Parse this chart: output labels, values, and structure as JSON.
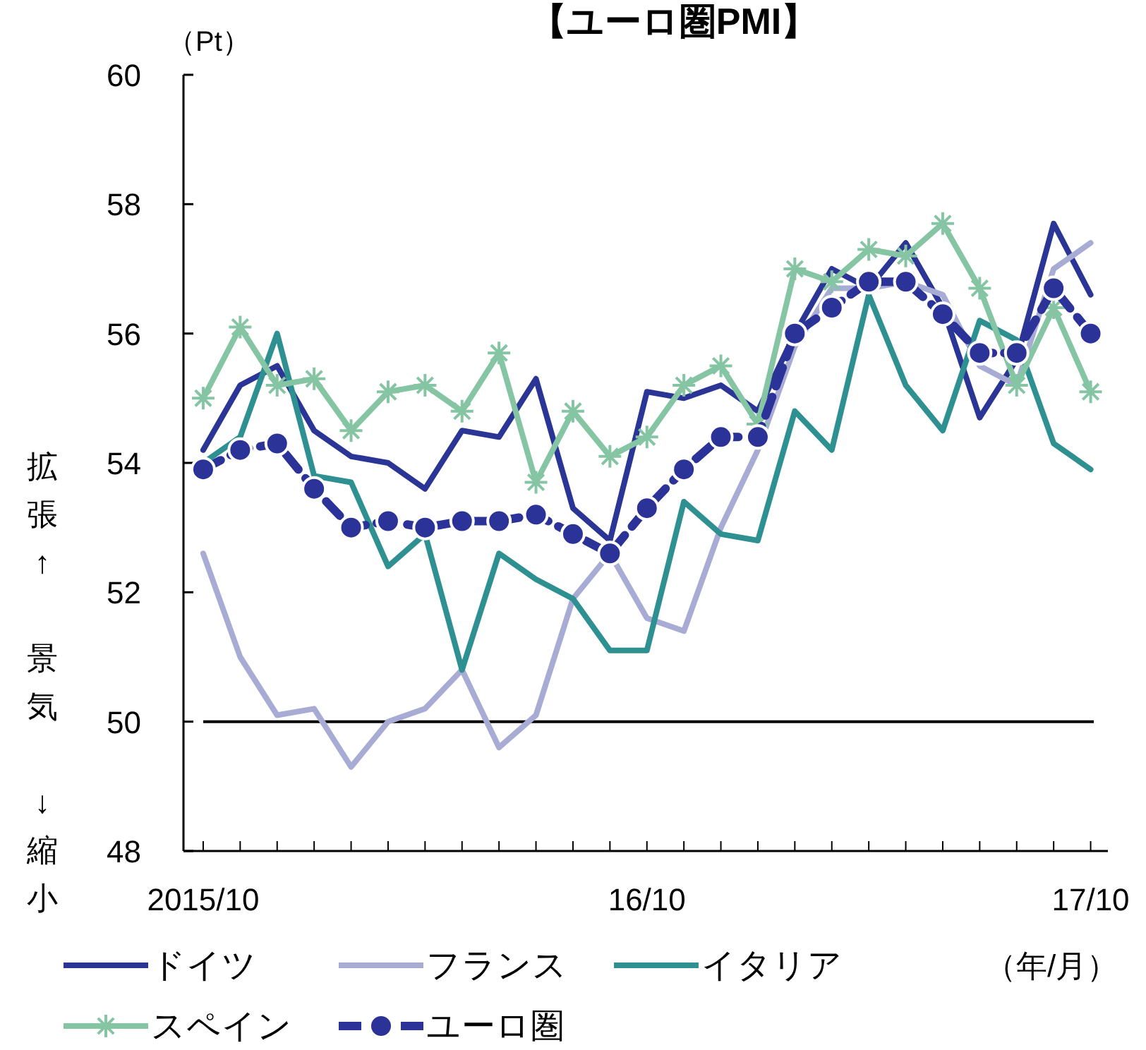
{
  "chart_data": {
    "type": "line",
    "title": "【ユーロ圏PMI】",
    "xlabel": "（年/月）",
    "ylabel": "拡張↑ 景気 ↓縮小",
    "annotations": [
      "（Pt）"
    ],
    "x": [
      "2015-10",
      "2015-11",
      "2015-12",
      "2016-01",
      "2016-02",
      "2016-03",
      "2016-04",
      "2016-05",
      "2016-06",
      "2016-07",
      "2016-08",
      "2016-09",
      "2016-10",
      "2016-11",
      "2016-12",
      "2017-01",
      "2017-02",
      "2017-03",
      "2017-04",
      "2017-05",
      "2017-06",
      "2017-07",
      "2017-08",
      "2017-09",
      "2017-10"
    ],
    "xlim": [
      "2015-09-15",
      "2017-10-15"
    ],
    "xticks": [
      {
        "value": "2015-10",
        "label": "2015/10"
      },
      {
        "value": "2015-11",
        "label": null
      },
      {
        "value": "2015-12",
        "label": null
      },
      {
        "value": "2016-01",
        "label": null
      },
      {
        "value": "2016-02",
        "label": null
      },
      {
        "value": "2016-03",
        "label": null
      },
      {
        "value": "2016-04",
        "label": null
      },
      {
        "value": "2016-05",
        "label": null
      },
      {
        "value": "2016-06",
        "label": null
      },
      {
        "value": "2016-07",
        "label": null
      },
      {
        "value": "2016-08",
        "label": null
      },
      {
        "value": "2016-09",
        "label": null
      },
      {
        "value": "2016-10",
        "label": "16/10"
      },
      {
        "value": "2016-11",
        "label": null
      },
      {
        "value": "2016-12",
        "label": null
      },
      {
        "value": "2017-01",
        "label": null
      },
      {
        "value": "2017-02",
        "label": null
      },
      {
        "value": "2017-03",
        "label": null
      },
      {
        "value": "2017-04",
        "label": null
      },
      {
        "value": "2017-05",
        "label": null
      },
      {
        "value": "2017-06",
        "label": null
      },
      {
        "value": "2017-07",
        "label": null
      },
      {
        "value": "2017-08",
        "label": null
      },
      {
        "value": "2017-09",
        "label": null
      },
      {
        "value": "2017-10",
        "label": "17/10"
      }
    ],
    "ylim": [
      48,
      60
    ],
    "yticks": [
      48,
      50,
      52,
      54,
      56,
      58,
      60
    ],
    "grid": false,
    "legend": "bottom",
    "ref_lines": [
      {
        "axis": "y",
        "value": 50,
        "color": "#000000"
      }
    ],
    "series": [
      {
        "name": "ドイツ",
        "color": "#2b3595",
        "values": [
          54.2,
          55.2,
          55.5,
          54.5,
          54.1,
          54.0,
          53.6,
          54.5,
          54.4,
          55.3,
          53.3,
          52.8,
          55.1,
          55.0,
          55.2,
          54.8,
          56.0,
          57.0,
          56.7,
          57.4,
          56.4,
          54.7,
          55.6,
          57.7,
          56.6
        ]
      },
      {
        "name": "フランス",
        "color": "#a8abd4",
        "values": [
          52.6,
          51.0,
          50.1,
          50.2,
          49.3,
          50.0,
          50.2,
          50.8,
          49.6,
          50.1,
          51.9,
          52.6,
          51.6,
          51.4,
          53.0,
          54.2,
          55.8,
          56.7,
          56.7,
          56.8,
          56.6,
          55.5,
          55.2,
          57.0,
          57.4
        ]
      },
      {
        "name": "イタリア",
        "color": "#2e9090",
        "values": [
          54.0,
          54.4,
          56.0,
          53.8,
          53.7,
          52.4,
          52.9,
          50.8,
          52.6,
          52.2,
          51.9,
          51.1,
          51.1,
          53.4,
          52.9,
          52.8,
          54.8,
          54.2,
          56.6,
          55.2,
          54.5,
          56.2,
          55.9,
          54.3,
          53.9
        ]
      },
      {
        "name": "スペイン",
        "color": "#85c5a4",
        "marker": "cross",
        "values": [
          55.0,
          56.1,
          55.2,
          55.3,
          54.5,
          55.1,
          55.2,
          54.8,
          55.7,
          53.7,
          54.8,
          54.1,
          54.4,
          55.2,
          55.5,
          54.6,
          57.0,
          56.8,
          57.3,
          57.2,
          57.7,
          56.7,
          55.2,
          56.4,
          55.1
        ]
      },
      {
        "name": "ユーロ圏",
        "color": "#2b3298",
        "marker": "circle",
        "line_style": "dashed",
        "values": [
          53.9,
          54.2,
          54.3,
          53.6,
          53.0,
          53.1,
          53.0,
          53.1,
          53.1,
          53.2,
          52.9,
          52.6,
          53.3,
          53.9,
          54.4,
          54.4,
          56.0,
          56.4,
          56.8,
          56.8,
          56.3,
          55.7,
          55.7,
          56.7,
          56.0
        ]
      }
    ]
  }
}
